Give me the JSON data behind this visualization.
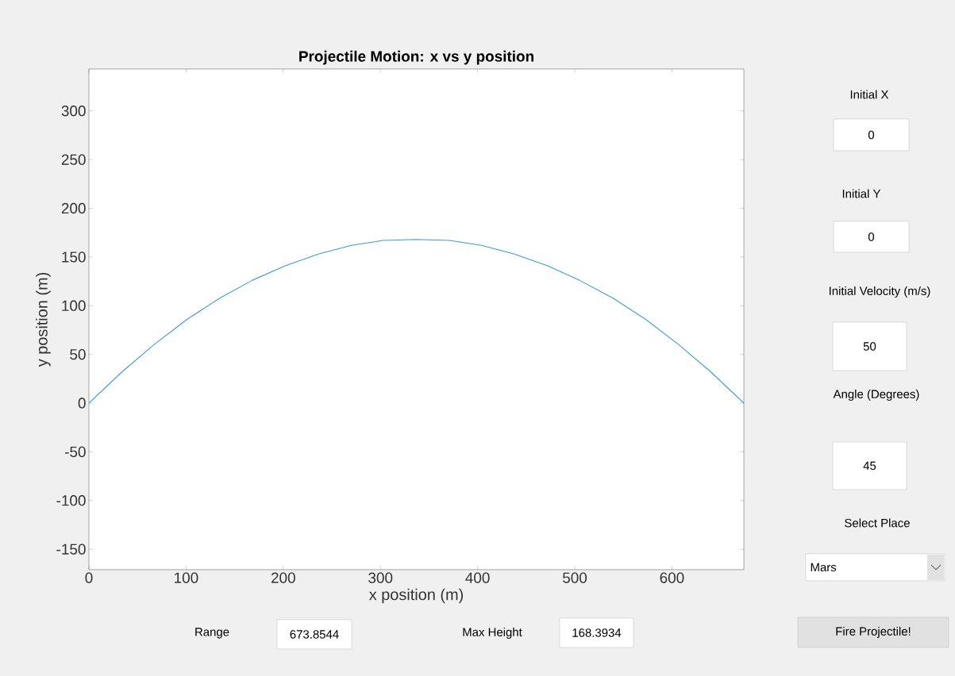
{
  "chart_data": {
    "type": "line",
    "title": "Projectile Motion: x vs y position",
    "xlabel": "x position (m)",
    "ylabel": "y position (m)",
    "x": [
      0,
      34,
      67,
      101,
      135,
      168,
      202,
      236,
      270,
      303,
      337,
      371,
      404,
      438,
      472,
      505,
      539,
      573,
      607,
      640,
      674
    ],
    "values": [
      0,
      32,
      60,
      86,
      108,
      126,
      141,
      153,
      162,
      167,
      168,
      167,
      162,
      153,
      141,
      126,
      108,
      86,
      60,
      32,
      0
    ],
    "color": "#3d9ad9",
    "xlim": [
      0,
      674
    ],
    "ylim": [
      -171,
      343
    ],
    "xticks": [
      0,
      100,
      200,
      300,
      400,
      500,
      600
    ],
    "yticks": [
      -150,
      -100,
      -50,
      0,
      50,
      100,
      150,
      200,
      250,
      300
    ],
    "annotations": [
      "Initial X",
      "0",
      "Initial Y",
      "0",
      "Initial Velocity (m/s)",
      "50",
      "Angle (Degrees)",
      "45",
      "Select Place",
      "Mars",
      "Range",
      "673.8544",
      "Max Height",
      "168.3934",
      "Fire Projectile!"
    ]
  }
}
